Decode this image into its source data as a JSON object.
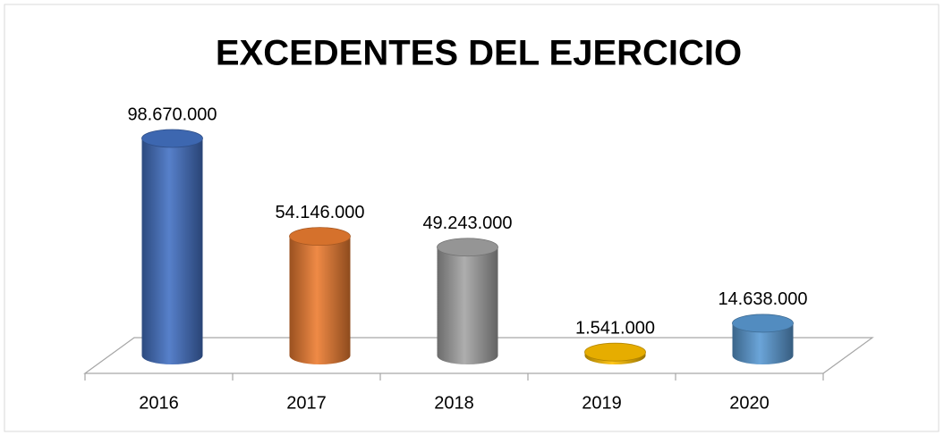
{
  "chart_data": {
    "type": "bar3d",
    "title": "EXCEDENTES DEL EJERCICIO",
    "categories": [
      "2016",
      "2017",
      "2018",
      "2019",
      "2020"
    ],
    "values": [
      98670000,
      54146000,
      49243000,
      1541000,
      14638000
    ],
    "value_labels": [
      "98.670.000",
      "54.146.000",
      "49.243.000",
      "1.541.000",
      "14.638.000"
    ],
    "colors": [
      "#4472c4",
      "#ed7d31",
      "#a5a5a5",
      "#ffc000",
      "#5b9bd5"
    ]
  }
}
